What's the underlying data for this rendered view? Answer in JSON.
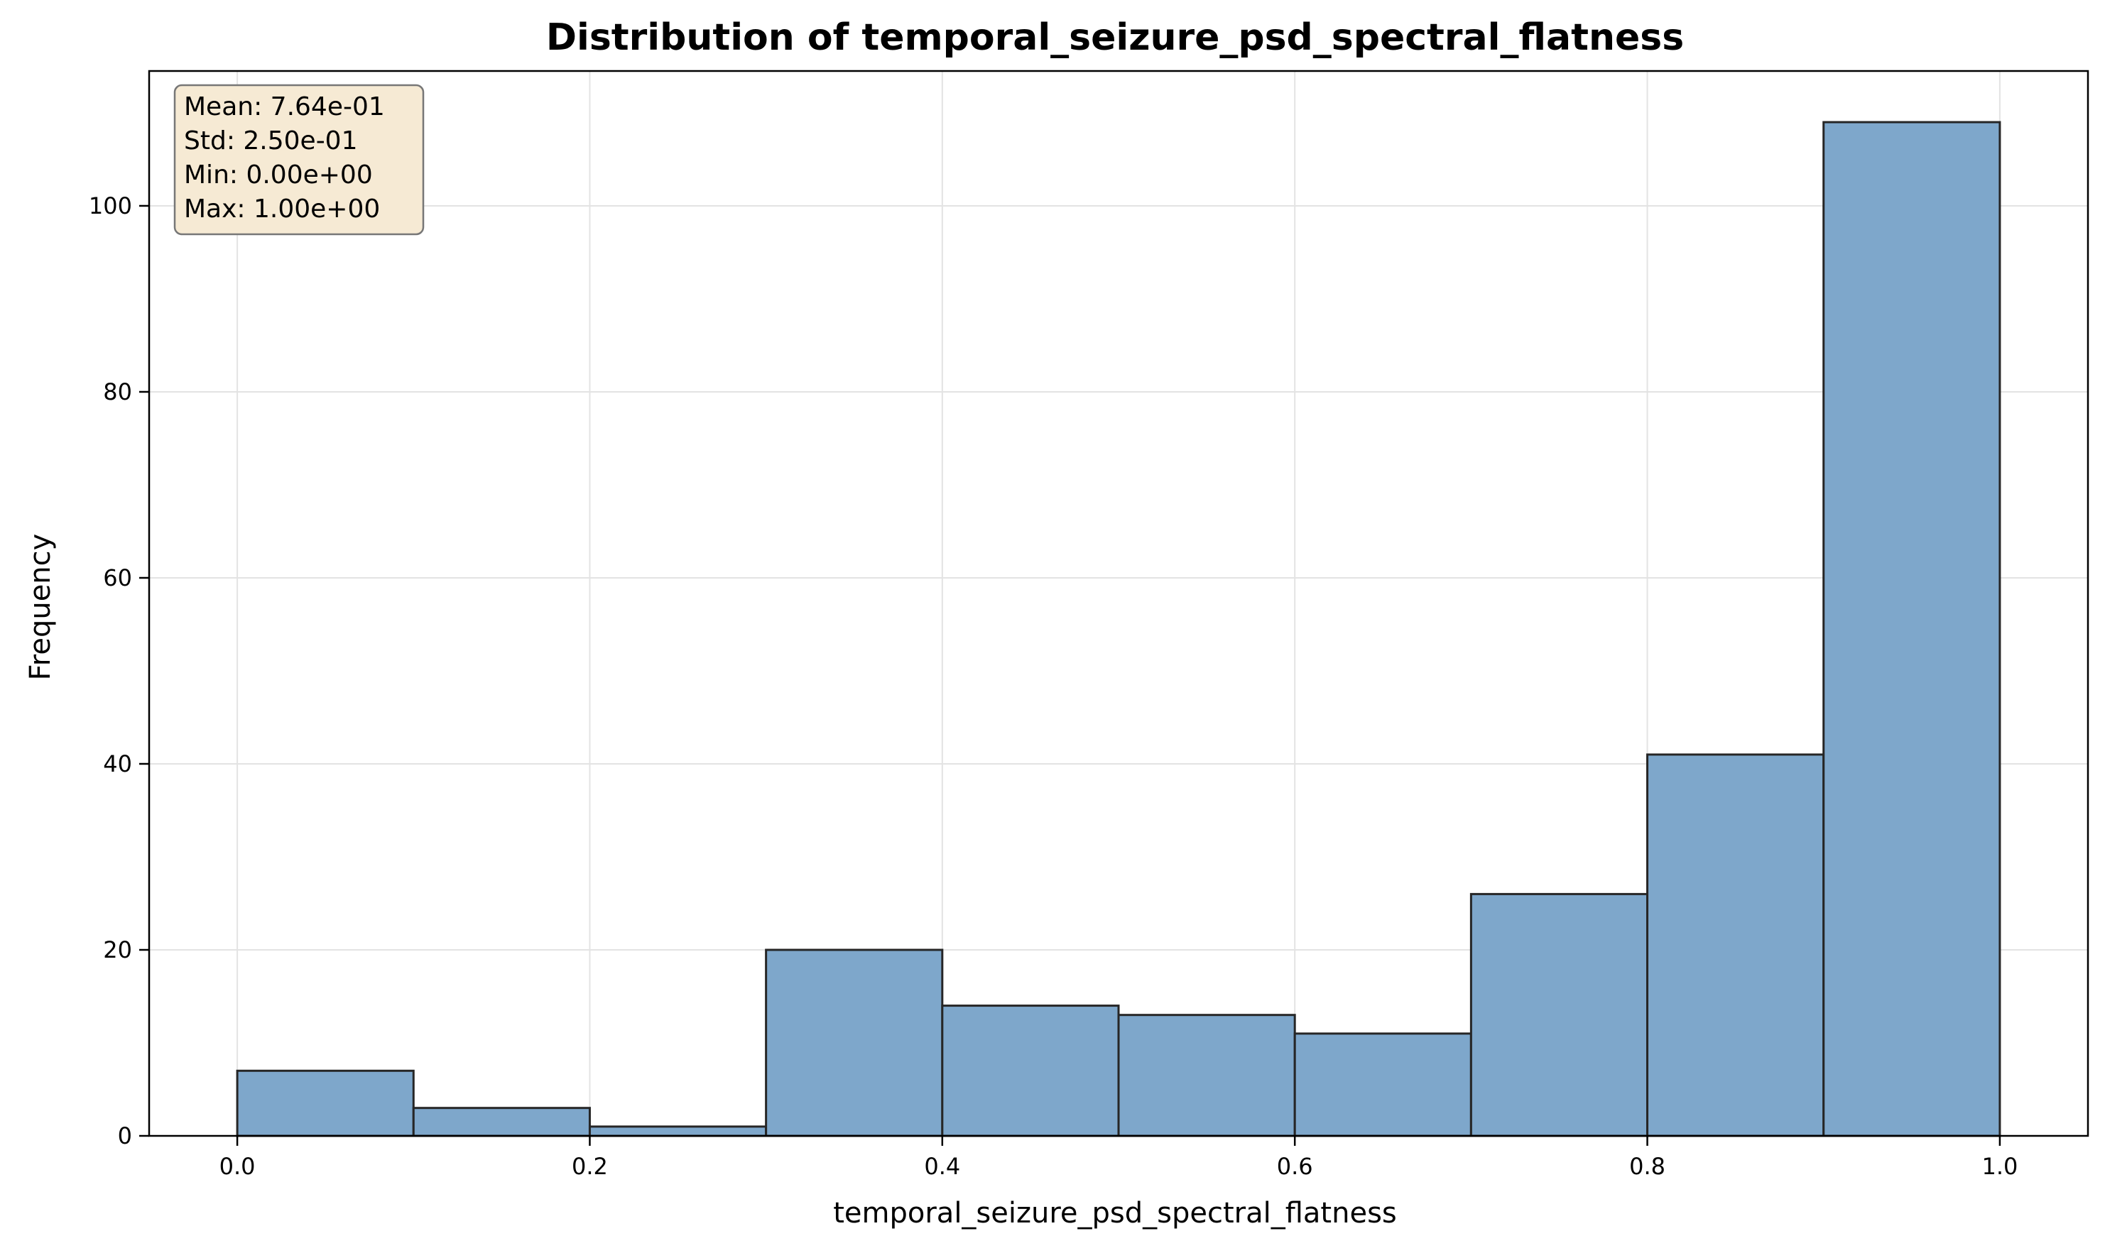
{
  "chart_data": {
    "type": "bar",
    "title": "Distribution of temporal_seizure_psd_spectral_flatness",
    "xlabel": "temporal_seizure_psd_spectral_flatness",
    "ylabel": "Frequency",
    "xlim": [
      -0.05,
      1.05
    ],
    "ylim": [
      0,
      114.5
    ],
    "xticks": [
      "0.0",
      "0.2",
      "0.4",
      "0.6",
      "0.8",
      "1.0"
    ],
    "yticks": [
      "0",
      "20",
      "40",
      "60",
      "80",
      "100"
    ],
    "grid": true,
    "bins": [
      {
        "x0": 0.0,
        "x1": 0.1,
        "count": 7
      },
      {
        "x0": 0.1,
        "x1": 0.2,
        "count": 3
      },
      {
        "x0": 0.2,
        "x1": 0.3,
        "count": 1
      },
      {
        "x0": 0.3,
        "x1": 0.4,
        "count": 20
      },
      {
        "x0": 0.4,
        "x1": 0.5,
        "count": 14
      },
      {
        "x0": 0.5,
        "x1": 0.6,
        "count": 13
      },
      {
        "x0": 0.6,
        "x1": 0.7,
        "count": 11
      },
      {
        "x0": 0.7,
        "x1": 0.8,
        "count": 26
      },
      {
        "x0": 0.8,
        "x1": 0.9,
        "count": 41
      },
      {
        "x0": 0.9,
        "x1": 1.0,
        "count": 109
      }
    ],
    "stats": {
      "mean": "Mean: 7.64e-01",
      "std": "Std: 2.50e-01",
      "min": "Min: 0.00e+00",
      "max": "Max: 1.00e+00"
    },
    "colors": {
      "bar_fill": "#7ea7cb",
      "bar_edge": "#262626",
      "grid": "#e3e3e3",
      "stats_fill": "#f6ead4",
      "stats_edge": "#777777"
    }
  }
}
